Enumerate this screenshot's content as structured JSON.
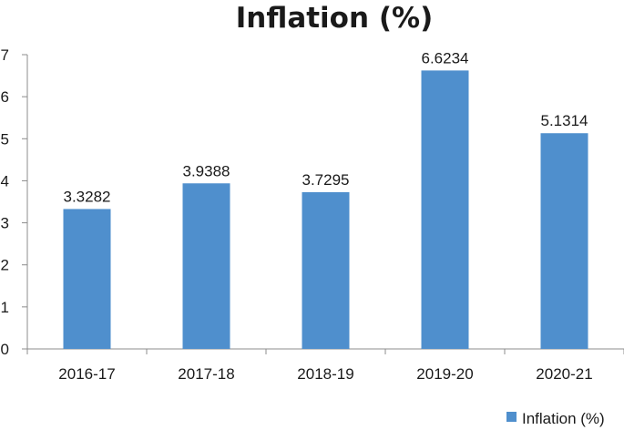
{
  "chart_data": {
    "type": "bar",
    "title": "Inflation (%)",
    "categories": [
      "2016-17",
      "2017-18",
      "2018-19",
      "2019-20",
      "2020-21"
    ],
    "series": [
      {
        "name": "Inflation (%)",
        "values": [
          3.3282,
          3.9388,
          3.7295,
          6.6234,
          5.1314
        ],
        "color": "#4f8fcd"
      }
    ],
    "data_labels": [
      "3.3282",
      "3.9388",
      "3.7295",
      "6.6234",
      "5.1314"
    ],
    "y_ticks": [
      "0",
      "1",
      "2",
      "3",
      "4",
      "5",
      "6",
      "7"
    ],
    "ylim": [
      0,
      7
    ],
    "grid": false,
    "legend_position": "bottom-right"
  }
}
